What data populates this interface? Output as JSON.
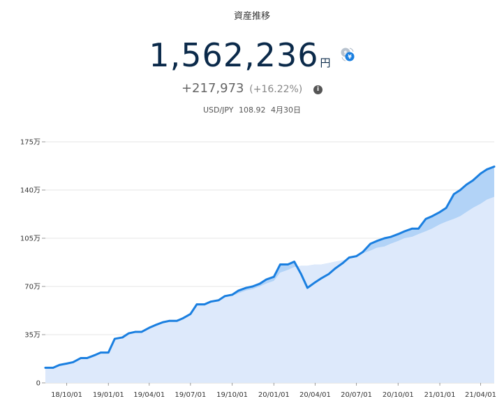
{
  "header": {
    "title": "資産推移",
    "total_value": "1,562,236",
    "total_unit": "円",
    "change_value": "+217,973",
    "change_percent": "(+16.22%)",
    "rate_label": "USD/JPY",
    "rate_value": "108.92",
    "rate_date": "4月30日"
  },
  "colors": {
    "line": "#1a7fe0",
    "area": "#dde9fb",
    "profit_band": "#b2d3f7",
    "grid": "#e6e6e6",
    "title_text": "#0b2a4a"
  },
  "chart_data": {
    "type": "area",
    "title": "資産推移",
    "y_unit": "万円",
    "ylim": [
      0,
      175
    ],
    "y_ticks": [
      0,
      35,
      70,
      105,
      140,
      175
    ],
    "y_tick_labels": [
      "0",
      "35万",
      "70万",
      "105万",
      "140万",
      "175万"
    ],
    "x_range": [
      "2018-08-15",
      "2021-05-01"
    ],
    "x_tick_dates": [
      "2018-10-01",
      "2019-01-01",
      "2019-04-01",
      "2019-07-01",
      "2019-10-01",
      "2020-01-01",
      "2020-04-01",
      "2020-07-01",
      "2020-10-01",
      "2021-01-01",
      "2021-04-01"
    ],
    "x_tick_labels": [
      "18/10/01",
      "19/01/01",
      "19/04/01",
      "19/07/01",
      "19/10/01",
      "20/01/01",
      "20/04/01",
      "20/07/01",
      "20/10/01",
      "21/01/01",
      "21/04/01"
    ],
    "grid": true,
    "legend": "none",
    "series": [
      {
        "x": [
          "2018-08-15",
          "2018-09-01",
          "2018-09-15",
          "2018-10-01",
          "2018-10-15",
          "2018-11-01",
          "2018-11-15",
          "2018-12-01",
          "2018-12-15",
          "2019-01-01",
          "2019-01-15",
          "2019-02-01",
          "2019-02-15",
          "2019-03-01",
          "2019-03-15",
          "2019-04-01",
          "2019-04-15",
          "2019-05-01",
          "2019-05-15",
          "2019-06-01",
          "2019-06-15",
          "2019-07-01",
          "2019-07-15",
          "2019-08-01",
          "2019-08-15",
          "2019-09-01",
          "2019-09-15",
          "2019-10-01",
          "2019-10-15",
          "2019-11-01",
          "2019-11-15",
          "2019-12-01",
          "2019-12-15",
          "2020-01-01",
          "2020-01-15",
          "2020-02-01",
          "2020-02-15",
          "2020-03-01",
          "2020-03-15",
          "2020-04-01",
          "2020-04-15",
          "2020-05-01",
          "2020-05-15",
          "2020-06-01",
          "2020-06-15",
          "2020-07-01",
          "2020-07-15",
          "2020-08-01",
          "2020-08-15",
          "2020-09-01",
          "2020-09-15",
          "2020-10-01",
          "2020-10-15",
          "2020-11-01",
          "2020-11-15",
          "2020-12-01",
          "2020-12-15",
          "2021-01-01",
          "2021-01-15",
          "2021-02-01",
          "2021-02-15",
          "2021-03-01",
          "2021-03-15",
          "2021-04-01",
          "2021-04-15",
          "2021-05-01"
        ],
        "values": [
          11,
          11,
          13,
          14,
          15,
          18,
          18,
          20,
          22,
          22,
          32,
          33,
          36,
          37,
          37,
          40,
          42,
          44,
          45,
          45,
          47,
          50,
          57,
          57,
          59,
          60,
          63,
          64,
          67,
          69,
          70,
          72,
          75,
          77,
          86,
          86,
          88,
          79,
          69,
          73,
          76,
          79,
          83,
          87,
          91,
          92,
          95,
          101,
          103,
          105,
          106,
          108,
          110,
          112,
          112,
          119,
          121,
          124,
          127,
          137,
          140,
          144,
          147,
          152,
          155,
          157
        ]
      },
      {
        "x": [
          "2018-08-15",
          "2018-09-01",
          "2018-09-15",
          "2018-10-01",
          "2018-10-15",
          "2018-11-01",
          "2018-11-15",
          "2018-12-01",
          "2018-12-15",
          "2019-01-01",
          "2019-01-15",
          "2019-02-01",
          "2019-02-15",
          "2019-03-01",
          "2019-03-15",
          "2019-04-01",
          "2019-04-15",
          "2019-05-01",
          "2019-05-15",
          "2019-06-01",
          "2019-06-15",
          "2019-07-01",
          "2019-07-15",
          "2019-08-01",
          "2019-08-15",
          "2019-09-01",
          "2019-09-15",
          "2019-10-01",
          "2019-10-15",
          "2019-11-01",
          "2019-11-15",
          "2019-12-01",
          "2019-12-15",
          "2020-01-01",
          "2020-01-15",
          "2020-02-01",
          "2020-02-15",
          "2020-03-01",
          "2020-03-15",
          "2020-04-01",
          "2020-04-15",
          "2020-05-01",
          "2020-05-15",
          "2020-06-01",
          "2020-06-15",
          "2020-07-01",
          "2020-07-15",
          "2020-08-01",
          "2020-08-15",
          "2020-09-01",
          "2020-09-15",
          "2020-10-01",
          "2020-10-15",
          "2020-11-01",
          "2020-11-15",
          "2020-12-01",
          "2020-12-15",
          "2021-01-01",
          "2021-01-15",
          "2021-02-01",
          "2021-02-15",
          "2021-03-01",
          "2021-03-15",
          "2021-04-01",
          "2021-04-15",
          "2021-05-01"
        ],
        "values": [
          11,
          11,
          13,
          14,
          15,
          18,
          18,
          20,
          22,
          22,
          32,
          33,
          36,
          37,
          37,
          40,
          42,
          44,
          45,
          45,
          47,
          50,
          56,
          56,
          58,
          60,
          62,
          63,
          65,
          67,
          68,
          70,
          72,
          74,
          80,
          82,
          84,
          85,
          85,
          86,
          86,
          87,
          88,
          89,
          90,
          92,
          94,
          96,
          98,
          99,
          101,
          103,
          105,
          106,
          108,
          110,
          112,
          115,
          117,
          119,
          121,
          124,
          127,
          130,
          133,
          135
        ]
      }
    ]
  }
}
